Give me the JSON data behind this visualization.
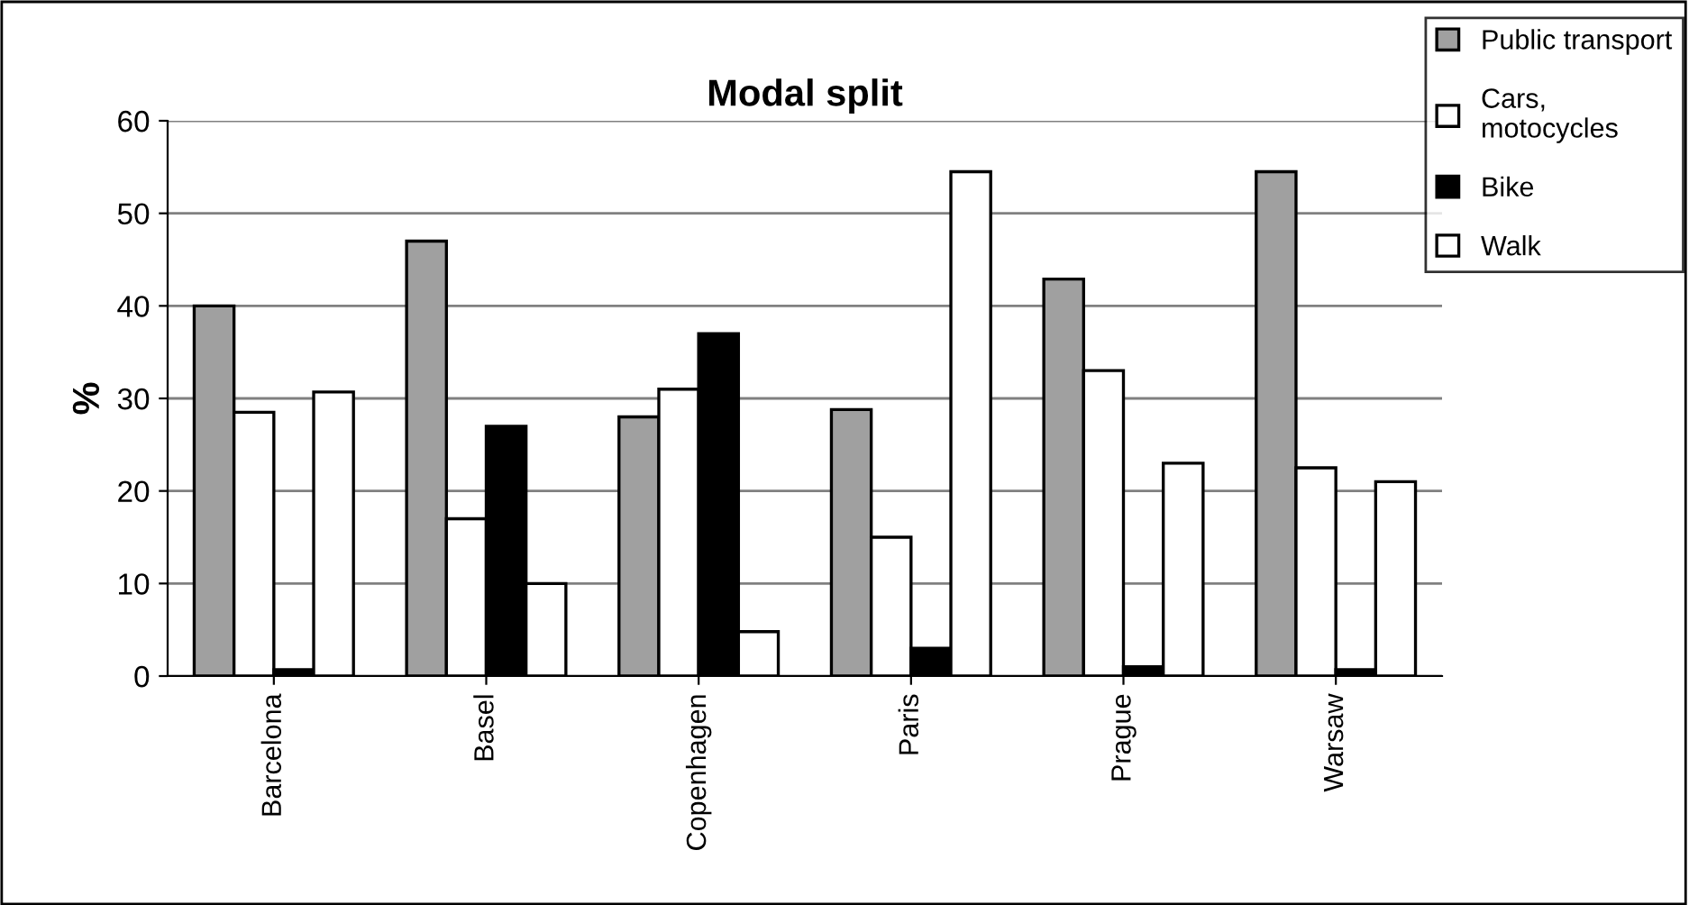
{
  "chart_data": {
    "type": "bar",
    "title": "Modal split",
    "ylabel": "%",
    "categories": [
      "Barcelona",
      "Basel",
      "Copenhagen",
      "Paris",
      "Prague",
      "Warsaw"
    ],
    "series": [
      {
        "name": "Public transport",
        "color": "#a0a0a0",
        "values": [
          40,
          47,
          28,
          28.8,
          42.9,
          54.5
        ]
      },
      {
        "name": "Cars,\nmotocycles",
        "color": "#ffffff",
        "values": [
          28.5,
          17,
          31,
          15,
          33,
          22.5
        ]
      },
      {
        "name": "Bike",
        "color": "#000000",
        "values": [
          0.7,
          27,
          37,
          3,
          1,
          0.7
        ]
      },
      {
        "name": "Walk",
        "color": "#ffffff",
        "values": [
          30.7,
          10,
          4.8,
          54.5,
          23,
          21
        ]
      }
    ],
    "ylim": [
      0,
      60
    ],
    "yticks": [
      0,
      10,
      20,
      30,
      40,
      50,
      60
    ],
    "grid": "y",
    "legend": "top right"
  }
}
